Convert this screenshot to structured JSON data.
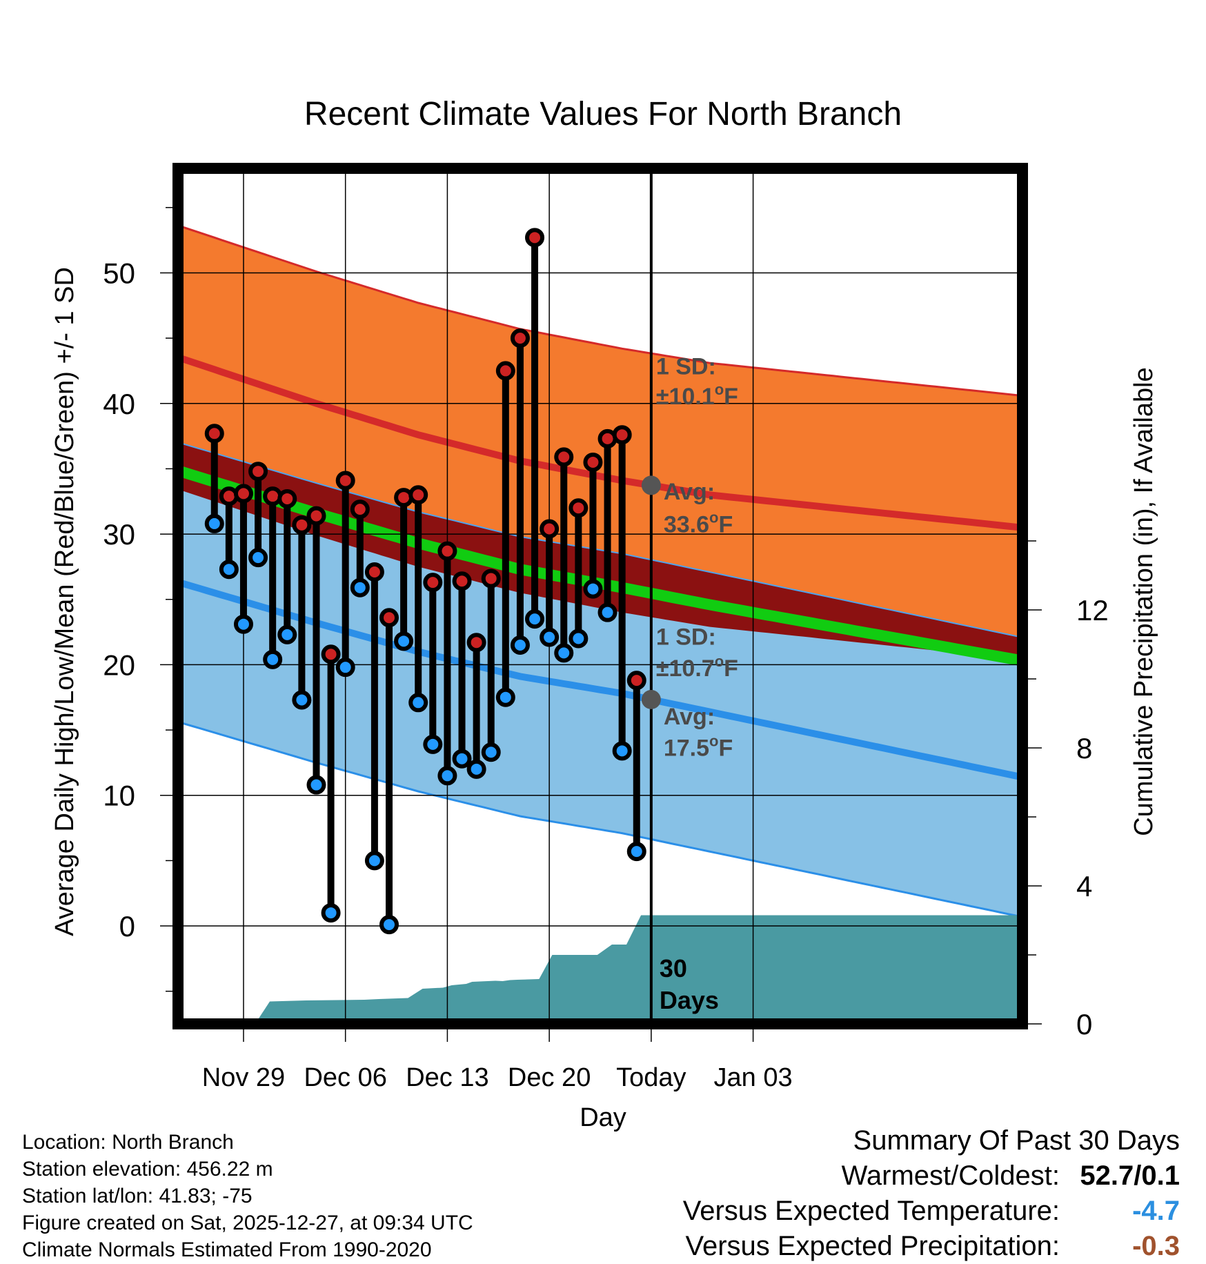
{
  "chart_data": {
    "type": "line",
    "title": "Recent Climate Values For North Branch",
    "xlabel": "Day",
    "ylabel": "Average Daily High/Low/Mean (Red/Blue/Green) +/- 1 SD",
    "ylabel_right": "Cumulative Precipitation (in), If Available",
    "ylim": [
      -7.5,
      58
    ],
    "ylim_right": [
      0,
      24.8
    ],
    "yticks": [
      0,
      10,
      20,
      30,
      40,
      50
    ],
    "yticks_right": [
      0,
      4,
      8,
      12
    ],
    "xlim": [
      -4.5,
      53.5
    ],
    "xticks": [
      {
        "day": 0,
        "label": "Nov 29"
      },
      {
        "day": 7,
        "label": "Dec 06"
      },
      {
        "day": 14,
        "label": "Dec 13"
      },
      {
        "day": 21,
        "label": "Dec 20"
      },
      {
        "day": 28,
        "label": "Today"
      },
      {
        "day": 35,
        "label": "Jan 03"
      }
    ],
    "today_day": 28,
    "today_label": "30\nDays",
    "normals": {
      "day": [
        -2,
        5,
        12,
        19,
        26,
        32,
        38
      ],
      "high_avg": [
        42.6,
        40.0,
        37.6,
        35.6,
        34.1,
        33.0,
        32.3
      ],
      "high_sd": 10.1,
      "low_avg": [
        25.5,
        23.2,
        21.0,
        19.1,
        17.8,
        16.4,
        15.0
      ],
      "low_sd": 10.7,
      "mean_avg": [
        34.0,
        31.6,
        29.3,
        27.3,
        25.9,
        24.6,
        23.4
      ]
    },
    "series": [
      {
        "name": "Daily High",
        "color": "#cc2222",
        "days": [
          -2,
          -1,
          0,
          1,
          2,
          3,
          4,
          5,
          6,
          7,
          8,
          9,
          10,
          11,
          12,
          13,
          14,
          15,
          16,
          17,
          18,
          19,
          20,
          21,
          22,
          23,
          24,
          25,
          26,
          27
        ],
        "values": [
          37.7,
          32.9,
          33.1,
          34.8,
          32.9,
          32.7,
          30.7,
          31.4,
          20.8,
          34.1,
          31.9,
          27.1,
          23.6,
          32.8,
          33.0,
          26.3,
          28.7,
          26.4,
          21.7,
          26.6,
          42.5,
          45.0,
          52.7,
          30.4,
          35.9,
          32.0,
          35.5,
          37.3,
          37.6,
          18.8
        ]
      },
      {
        "name": "Daily Low",
        "color": "#2299ff",
        "days": [
          -2,
          -1,
          0,
          1,
          2,
          3,
          4,
          5,
          6,
          7,
          8,
          9,
          10,
          11,
          12,
          13,
          14,
          15,
          16,
          17,
          18,
          19,
          20,
          21,
          22,
          23,
          24,
          25,
          26,
          27
        ],
        "values": [
          30.8,
          27.3,
          23.1,
          28.2,
          20.4,
          22.3,
          17.3,
          10.8,
          1.0,
          19.8,
          25.9,
          5.0,
          0.1,
          21.8,
          17.1,
          13.9,
          11.5,
          12.8,
          12.0,
          13.3,
          17.5,
          21.5,
          23.5,
          22.1,
          20.9,
          22.0,
          25.8,
          24.0,
          13.4,
          5.7
        ]
      }
    ],
    "precipitation": {
      "name": "Cumulative Precipitation",
      "color": "#4a9aa2",
      "days": [
        -4.5,
        0.8,
        1.8,
        4.3,
        8.3,
        9.3,
        11.3,
        12.3,
        13.7,
        14.3,
        15.3,
        15.7,
        17.3,
        17.8,
        18.3,
        18.8,
        20.3,
        21.2,
        22.3,
        23.3,
        24.3,
        25.3,
        26.3,
        27.3,
        28.3,
        29.3,
        53.5
      ],
      "values": [
        0,
        0,
        0.65,
        0.68,
        0.7,
        0.72,
        0.75,
        1.02,
        1.05,
        1.12,
        1.16,
        1.22,
        1.25,
        1.24,
        1.27,
        1.28,
        1.3,
        2.0,
        2.0,
        2.0,
        2.0,
        2.3,
        2.3,
        3.15,
        3.15,
        3.15,
        3.15
      ]
    },
    "annotations": {
      "high_sd": "1 SD:",
      "high_sd_value": "±10.1",
      "high_avg": "Avg:",
      "high_avg_value": "33.6",
      "low_sd": "1 SD:",
      "low_sd_value": "±10.7",
      "low_avg": "Avg:",
      "low_avg_value": "17.5",
      "unit_o": "o",
      "unit_f": "F"
    }
  },
  "info": {
    "location": "Location: North Branch",
    "elevation": "Station elevation: 456.22 m",
    "latlon": "Station lat/lon: 41.83; -75",
    "created": "Figure created on Sat, 2025-12-27, at 09:34 UTC",
    "normals": "Climate Normals Estimated From 1990-2020"
  },
  "summary": {
    "title": "Summary Of Past 30 Days",
    "warmest_label": "Warmest/Coldest:",
    "warmest_value": "52.7",
    "slash": "/",
    "coldest_value": "0.1",
    "temp_label": "Versus Expected Temperature:",
    "temp_value": "-4.7",
    "temp_color": "#2b8fe0",
    "precip_label": "Versus Expected Precipitation:",
    "precip_value": "-0.3",
    "precip_color": "#a0522d"
  }
}
